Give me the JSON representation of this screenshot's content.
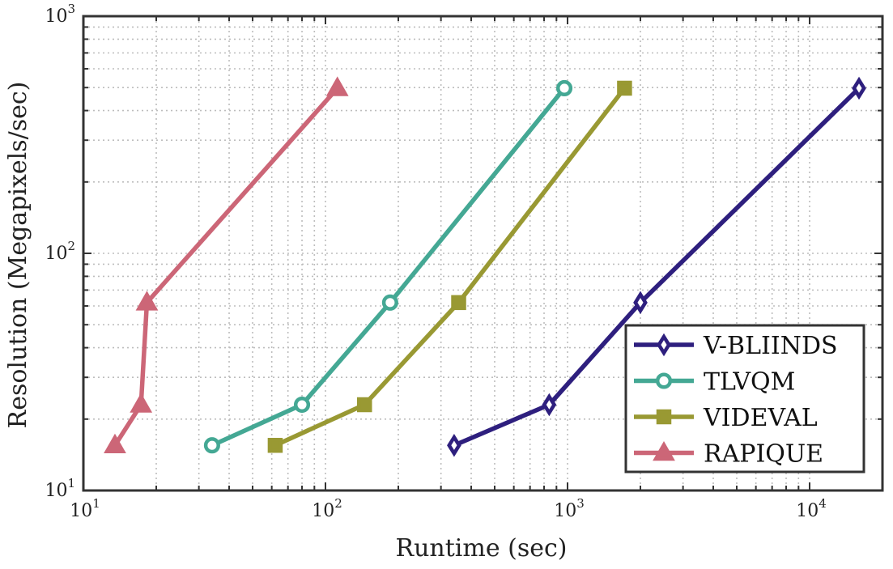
{
  "chart_data": {
    "type": "line",
    "xscale": "log",
    "yscale": "log",
    "xlim": [
      10,
      20000
    ],
    "ylim": [
      10,
      1000
    ],
    "grid": true,
    "xlabel": "Runtime (sec)",
    "ylabel": "Resolution (Megapixels/sec)",
    "xticks": [
      {
        "value": 10,
        "base": "10",
        "exp": "1"
      },
      {
        "value": 100,
        "base": "10",
        "exp": "2"
      },
      {
        "value": 1000,
        "base": "10",
        "exp": "3"
      },
      {
        "value": 10000,
        "base": "10",
        "exp": "4"
      }
    ],
    "yticks": [
      {
        "value": 10,
        "base": "10",
        "exp": "1"
      },
      {
        "value": 100,
        "base": "10",
        "exp": "2"
      },
      {
        "value": 1000,
        "base": "10",
        "exp": "3"
      }
    ],
    "legend_position": "bottom-right",
    "series": [
      {
        "name": "V-BLIINDS",
        "color": "#2e1f7e",
        "marker": "diamond",
        "x": [
          340,
          840,
          2000,
          16000
        ],
        "y": [
          15.5,
          23,
          62,
          497
        ]
      },
      {
        "name": "TLVQM",
        "color": "#44a894",
        "marker": "circle",
        "x": [
          34,
          80,
          185,
          970
        ],
        "y": [
          15.5,
          23,
          62,
          497
        ]
      },
      {
        "name": "VIDEVAL",
        "color": "#999933",
        "marker": "square",
        "x": [
          62,
          145,
          355,
          1720
        ],
        "y": [
          15.5,
          23,
          62,
          497
        ]
      },
      {
        "name": "RAPIQUE",
        "color": "#cc6677",
        "marker": "triangle",
        "x": [
          13.5,
          17.3,
          18.3,
          112
        ],
        "y": [
          15.5,
          23,
          62,
          497
        ]
      }
    ]
  }
}
